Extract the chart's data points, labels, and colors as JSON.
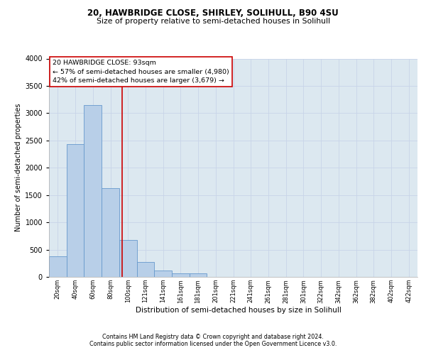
{
  "title1": "20, HAWBRIDGE CLOSE, SHIRLEY, SOLIHULL, B90 4SU",
  "title2": "Size of property relative to semi-detached houses in Solihull",
  "xlabel": "Distribution of semi-detached houses by size in Solihull",
  "ylabel": "Number of semi-detached properties",
  "footnote1": "Contains HM Land Registry data © Crown copyright and database right 2024.",
  "footnote2": "Contains public sector information licensed under the Open Government Licence v3.0.",
  "annotation_title": "20 HAWBRIDGE CLOSE: 93sqm",
  "annotation_line1": "← 57% of semi-detached houses are smaller (4,980)",
  "annotation_line2": "42% of semi-detached houses are larger (3,679) →",
  "bar_labels": [
    "20sqm",
    "40sqm",
    "60sqm",
    "80sqm",
    "100sqm",
    "121sqm",
    "141sqm",
    "161sqm",
    "181sqm",
    "201sqm",
    "221sqm",
    "241sqm",
    "261sqm",
    "281sqm",
    "301sqm",
    "322sqm",
    "342sqm",
    "362sqm",
    "382sqm",
    "402sqm",
    "422sqm"
  ],
  "bar_heights": [
    380,
    2430,
    3150,
    1620,
    680,
    270,
    115,
    65,
    60,
    0,
    0,
    0,
    0,
    0,
    0,
    0,
    0,
    0,
    0,
    0,
    0
  ],
  "n_bars": 21,
  "vline_bar_index": 3.65,
  "bar_color": "#b8cfe8",
  "bar_edge_color": "#6699cc",
  "vline_color": "#cc0000",
  "ylim": [
    0,
    4000
  ],
  "yticks": [
    0,
    500,
    1000,
    1500,
    2000,
    2500,
    3000,
    3500,
    4000
  ],
  "grid_color": "#c8d4e8",
  "bg_color": "#dce8f0"
}
